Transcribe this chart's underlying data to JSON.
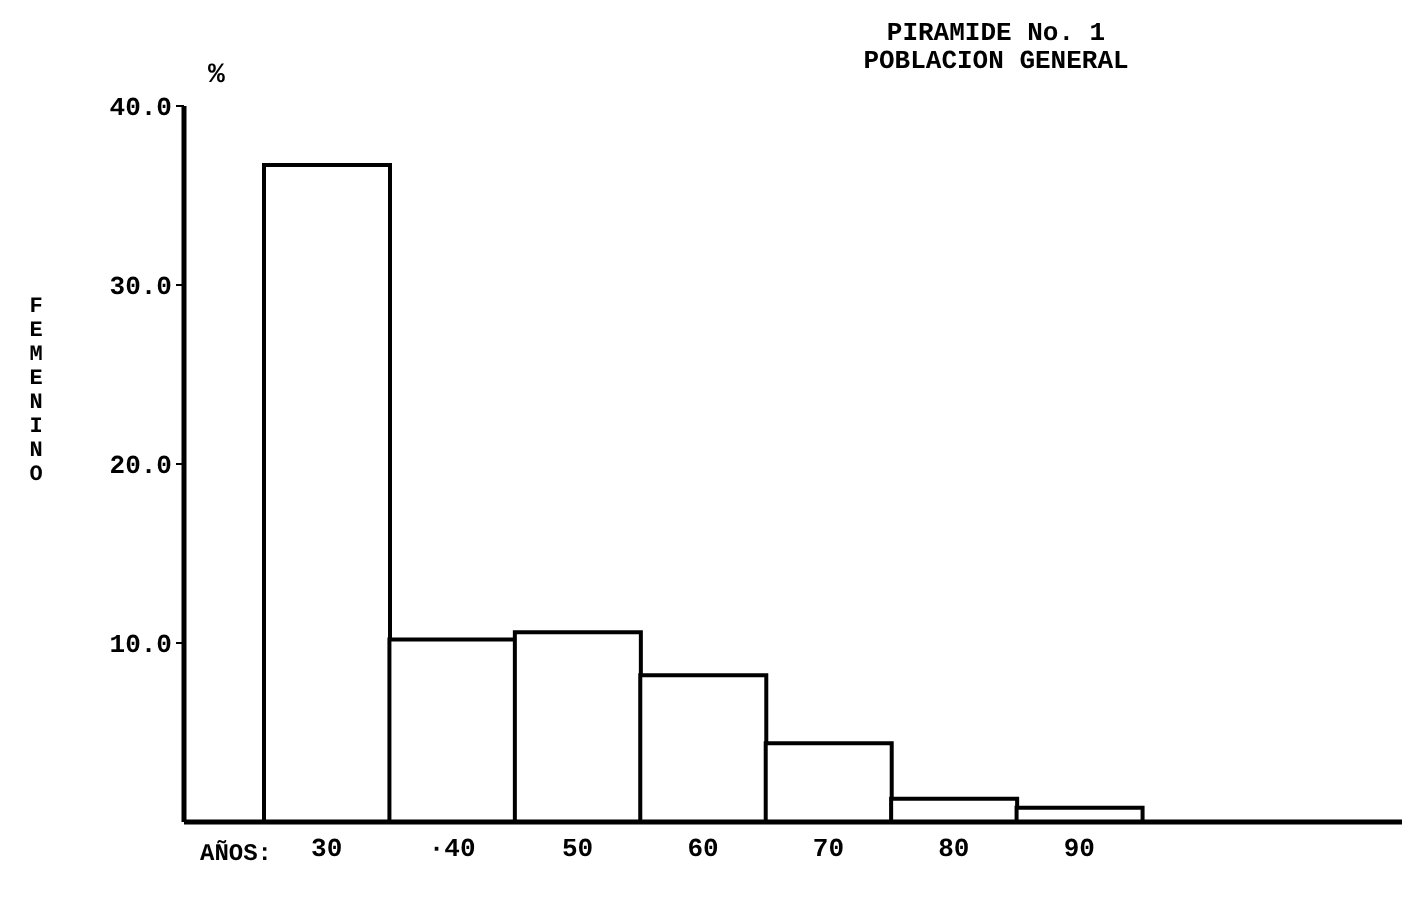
{
  "chart_data": {
    "type": "bar",
    "title": "PIRAMIDE No. 1",
    "subtitle": "POBLACION GENERAL",
    "xlabel": "AÑOS:",
    "ylabel": "FEMENINO",
    "annotations": [
      "%"
    ],
    "categories": [
      "30",
      "·40",
      "50",
      "60",
      "70",
      "80",
      "90"
    ],
    "values": [
      36.7,
      10.2,
      10.6,
      8.2,
      4.4,
      1.3,
      0.8
    ],
    "color": "#ffffff",
    "ylim": [
      0,
      40
    ],
    "yticks": [
      {
        "value": 10,
        "label": "10.0"
      },
      {
        "value": 20,
        "label": "20.0"
      },
      {
        "value": 30,
        "label": "30.0"
      },
      {
        "value": 40,
        "label": "40.0"
      }
    ],
    "grid": false
  }
}
